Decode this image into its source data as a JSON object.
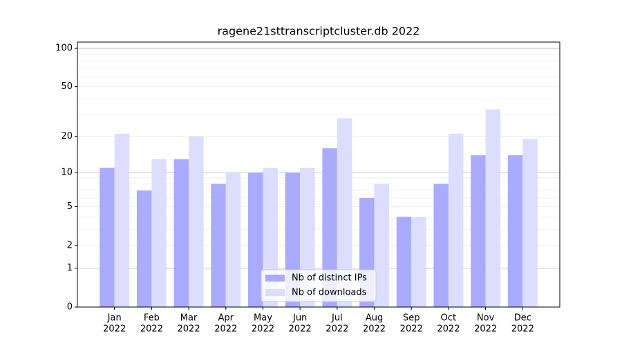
{
  "chart_data": {
    "type": "bar",
    "title": "ragene21sttranscriptcluster.db 2022",
    "categories": [
      [
        "Jan",
        "2022"
      ],
      [
        "Feb",
        "2022"
      ],
      [
        "Mar",
        "2022"
      ],
      [
        "Apr",
        "2022"
      ],
      [
        "May",
        "2022"
      ],
      [
        "Jun",
        "2022"
      ],
      [
        "Jul",
        "2022"
      ],
      [
        "Aug",
        "2022"
      ],
      [
        "Sep",
        "2022"
      ],
      [
        "Oct",
        "2022"
      ],
      [
        "Nov",
        "2022"
      ],
      [
        "Dec",
        "2022"
      ]
    ],
    "series": [
      {
        "name": "Nb of distinct IPs",
        "color": "#aaaaff",
        "values": [
          11,
          7,
          13,
          8,
          10,
          10,
          16,
          6,
          4,
          8,
          14,
          14
        ]
      },
      {
        "name": "Nb of downloads",
        "color": "#ddddff",
        "values": [
          21,
          13,
          20,
          10,
          11,
          11,
          28,
          8,
          4,
          21,
          33,
          19
        ]
      }
    ],
    "yscale": "log1p",
    "ylim": [
      0,
      112
    ],
    "yticks": [
      0,
      1,
      2,
      5,
      10,
      20,
      50,
      100
    ],
    "grid": true,
    "legend": "lower center"
  }
}
